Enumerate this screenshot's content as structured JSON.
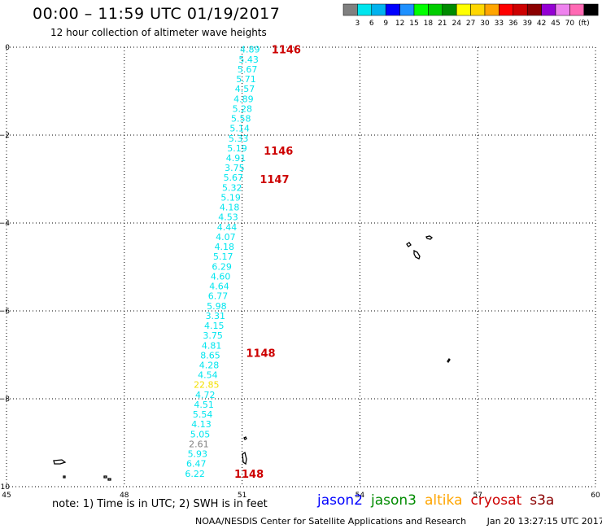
{
  "header": {
    "title": "00:00 – 11:59 UTC 01/19/2017",
    "subtitle": "12 hour collection of altimeter wave heights"
  },
  "colorbar": {
    "colors": [
      "#808080",
      "#00e5ee",
      "#00b2ee",
      "#0000ff",
      "#1e90ff",
      "#00ff00",
      "#00cd00",
      "#008b00",
      "#ffff00",
      "#ffd700",
      "#ffa500",
      "#ff0000",
      "#cd0000",
      "#8b0000",
      "#9400d3",
      "#ee82ee",
      "#ff69b4",
      "#000000"
    ],
    "labels": [
      "3",
      "6",
      "9",
      "12",
      "15",
      "18",
      "21",
      "24",
      "27",
      "30",
      "33",
      "36",
      "39",
      "42",
      "45",
      "70",
      "(ft)"
    ]
  },
  "chart_data": {
    "type": "scatter",
    "xlim": [
      45,
      60
    ],
    "ylim": [
      -10,
      0
    ],
    "x_ticks": [
      "45",
      "48",
      "51",
      "54",
      "57",
      "60"
    ],
    "y_ticks": [
      "0",
      "−2",
      "−4",
      "−6",
      "−8",
      "−10"
    ],
    "grid": true,
    "track_values": [
      "4.89",
      "5.43",
      "5.67",
      "5.71",
      "4.57",
      "4.89",
      "5.28",
      "5.58",
      "5.14",
      "5.33",
      "5.19",
      "4.91",
      "3.75",
      "5.67",
      "5.32",
      "5.19",
      "4.18",
      "4.53",
      "4.44",
      "4.07",
      "4.18",
      "5.17",
      "6.29",
      "4.60",
      "4.64",
      "6.77",
      "5.98",
      "3.31",
      "4.15",
      "3.75",
      "4.81",
      "8.65",
      "4.28",
      "4.54",
      "22.85",
      "4.72",
      "4.51",
      "5.54",
      "4.13",
      "5.05",
      "2.61",
      "5.93",
      "6.47",
      "6.22"
    ],
    "time_labels": [
      {
        "text": "1146",
        "lat": -0.05,
        "lon": 51.75
      },
      {
        "text": "1146",
        "lat": -2.35,
        "lon": 51.55
      },
      {
        "text": "1147",
        "lat": -3.0,
        "lon": 51.45
      },
      {
        "text": "1148",
        "lat": -6.95,
        "lon": 51.1
      },
      {
        "text": "1148",
        "lat": -9.7,
        "lon": 50.8
      }
    ]
  },
  "notes": {
    "text": "note:  1) Time is in UTC;  2) SWH is in feet"
  },
  "legend": [
    {
      "name": "jason2",
      "color": "#0000ff"
    },
    {
      "name": "jason3",
      "color": "#008b00"
    },
    {
      "name": "altika",
      "color": "#ffa500"
    },
    {
      "name": "cryosat",
      "color": "#cd0000"
    },
    {
      "name": "s3a",
      "color": "#8b0000"
    }
  ],
  "footer": {
    "source": "NOAA/NESDIS Center for Satellite Applications and Research",
    "timestamp": "Jan 20 13:27:15 UTC 2017"
  }
}
